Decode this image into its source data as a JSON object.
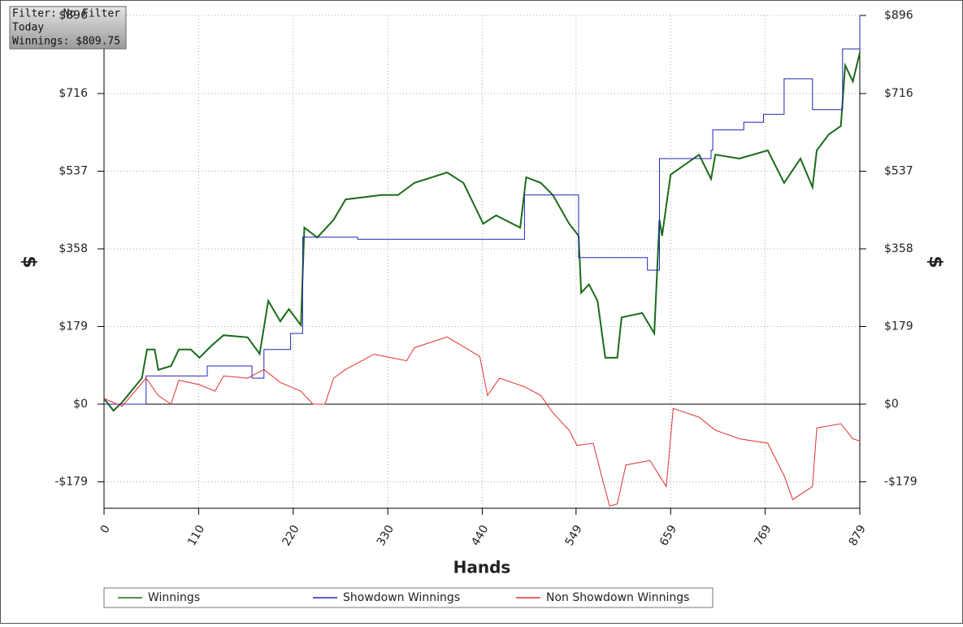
{
  "chart_data": {
    "type": "line",
    "annotations": [
      "Filter: No Filter",
      "Today",
      "Winnings: $809.75"
    ],
    "x_label": "Hands",
    "y_label": "$",
    "xlim": [
      0,
      879
    ],
    "xticks": [
      0,
      110,
      220,
      330,
      440,
      549,
      659,
      769,
      879
    ],
    "ylim": [
      -240,
      896
    ],
    "yticks": [
      {
        "value": -179,
        "label": "-$179"
      },
      {
        "value": 0,
        "label": "$0"
      },
      {
        "value": 179,
        "label": "$179"
      },
      {
        "value": 358,
        "label": "$358"
      },
      {
        "value": 537,
        "label": "$537"
      },
      {
        "value": 716,
        "label": "$716"
      },
      {
        "value": 896,
        "label": "$896"
      }
    ],
    "grid": true,
    "series": [
      {
        "name": "Winnings",
        "color": "#1a6b1a",
        "x": [
          0,
          11,
          21,
          44,
          50,
          59,
          63,
          78,
          87,
          101,
          111,
          125,
          139,
          167,
          181,
          191,
          205,
          215,
          229,
          233,
          248,
          267,
          281,
          323,
          342,
          361,
          399,
          418,
          441,
          456,
          484,
          491,
          508,
          522,
          541,
          552,
          555,
          564,
          574,
          583,
          597,
          602,
          626,
          640,
          646,
          649,
          659,
          692,
          706,
          711,
          739,
          772,
          791,
          810,
          824,
          829,
          843,
          857,
          862,
          871,
          879
        ],
        "values": [
          13,
          -15,
          4,
          60,
          126,
          126,
          79,
          88,
          126,
          126,
          107,
          135,
          159,
          154,
          116,
          238,
          191,
          219,
          182,
          407,
          384,
          425,
          472,
          482,
          482,
          510,
          534,
          510,
          416,
          435,
          407,
          523,
          510,
          482,
          416,
          388,
          257,
          276,
          238,
          107,
          107,
          200,
          210,
          163,
          425,
          388,
          529,
          575,
          519,
          575,
          566,
          585,
          510,
          566,
          500,
          585,
          622,
          641,
          781,
          744,
          810
        ]
      },
      {
        "name": "Showdown Winnings",
        "color": "#2424b8",
        "x": [
          0,
          49,
          49,
          120,
          120,
          172,
          172,
          186,
          186,
          217,
          217,
          231,
          231,
          295,
          295,
          489,
          489,
          552,
          552,
          632,
          632,
          646,
          646,
          706,
          706,
          708,
          708,
          744,
          744,
          767,
          767,
          791,
          791,
          824,
          824,
          859,
          859,
          879,
          879
        ],
        "values": [
          0,
          0,
          65,
          65,
          88,
          88,
          60,
          60,
          126,
          126,
          163,
          163,
          385,
          385,
          380,
          380,
          482,
          482,
          338,
          338,
          309,
          309,
          566,
          566,
          585,
          585,
          632,
          632,
          650,
          650,
          668,
          668,
          750,
          750,
          679,
          679,
          819,
          819,
          896
        ]
      },
      {
        "name": "Non Showdown Winnings",
        "color": "#e03030",
        "x": [
          0,
          21,
          49,
          63,
          78,
          87,
          111,
          129,
          139,
          167,
          186,
          205,
          229,
          243,
          257,
          267,
          281,
          295,
          314,
          352,
          361,
          399,
          437,
          446,
          460,
          489,
          508,
          522,
          541,
          550,
          569,
          578,
          588,
          597,
          607,
          635,
          654,
          662,
          692,
          711,
          739,
          772,
          791,
          801,
          824,
          829,
          857,
          871,
          879
        ],
        "values": [
          13,
          -5,
          60,
          20,
          0,
          55,
          45,
          30,
          65,
          60,
          80,
          50,
          30,
          0,
          0,
          60,
          80,
          95,
          115,
          100,
          130,
          155,
          110,
          20,
          60,
          40,
          20,
          -20,
          -60,
          -95,
          -90,
          -160,
          -235,
          -230,
          -140,
          -130,
          -190,
          -10,
          -30,
          -60,
          -80,
          -90,
          -165,
          -220,
          -190,
          -55,
          -45,
          -80,
          -85
        ]
      }
    ]
  }
}
